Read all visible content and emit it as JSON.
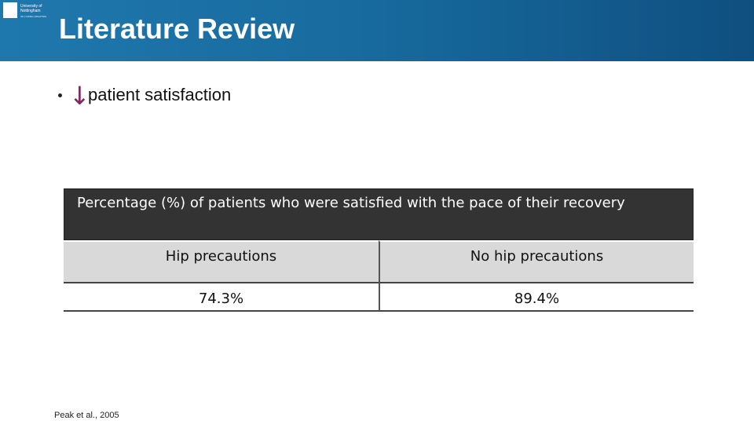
{
  "header": {
    "title": "Literature Review",
    "logo": [
      "University of",
      "Nottingham",
      "UK | CHINA | MALAYSIA"
    ]
  },
  "bullets": [
    {
      "arrow": "↓",
      "text": "patient satisfaction"
    }
  ],
  "table": {
    "caption": "Percentage (%) of patients who were satisfied with the pace of their recovery",
    "headers": [
      "Hip precautions",
      "No hip precautions"
    ],
    "rows": [
      [
        "74.3%",
        "89.4%"
      ]
    ]
  },
  "citation": "Peak et al., 2005"
}
